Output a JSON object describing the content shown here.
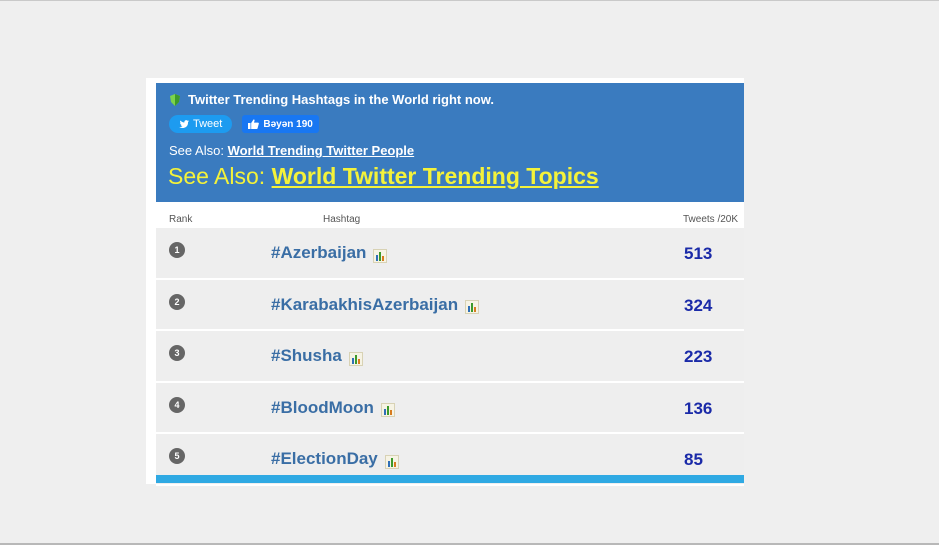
{
  "header": {
    "title": "Twitter Trending Hashtags in the World right now.",
    "tweet_label": "Tweet",
    "like_label": "Bəyən 190",
    "see_also_small_prefix": "See Also:",
    "see_also_small_link": "World Trending Twitter People",
    "see_also_big_prefix": "See Also:",
    "see_also_big_link": "World Twitter Trending Topics"
  },
  "table": {
    "columns": [
      "Rank",
      "Hashtag",
      "Tweets /20K"
    ],
    "rows": [
      {
        "rank": "1",
        "hashtag": "#Azerbaijan",
        "tweets": "513"
      },
      {
        "rank": "2",
        "hashtag": "#KarabakhisAzerbaijan",
        "tweets": "324"
      },
      {
        "rank": "3",
        "hashtag": "#Shusha",
        "tweets": "223"
      },
      {
        "rank": "4",
        "hashtag": "#BloodMoon",
        "tweets": "136"
      },
      {
        "rank": "5",
        "hashtag": "#ElectionDay",
        "tweets": "85"
      }
    ]
  },
  "colors": {
    "header_bg": "#3a7bbf",
    "see_also_yellow": "#f4f23a",
    "count_blue": "#1a2aa8",
    "hashtag_blue": "#3a6ea5",
    "bottom_bar": "#2fa9e3"
  }
}
